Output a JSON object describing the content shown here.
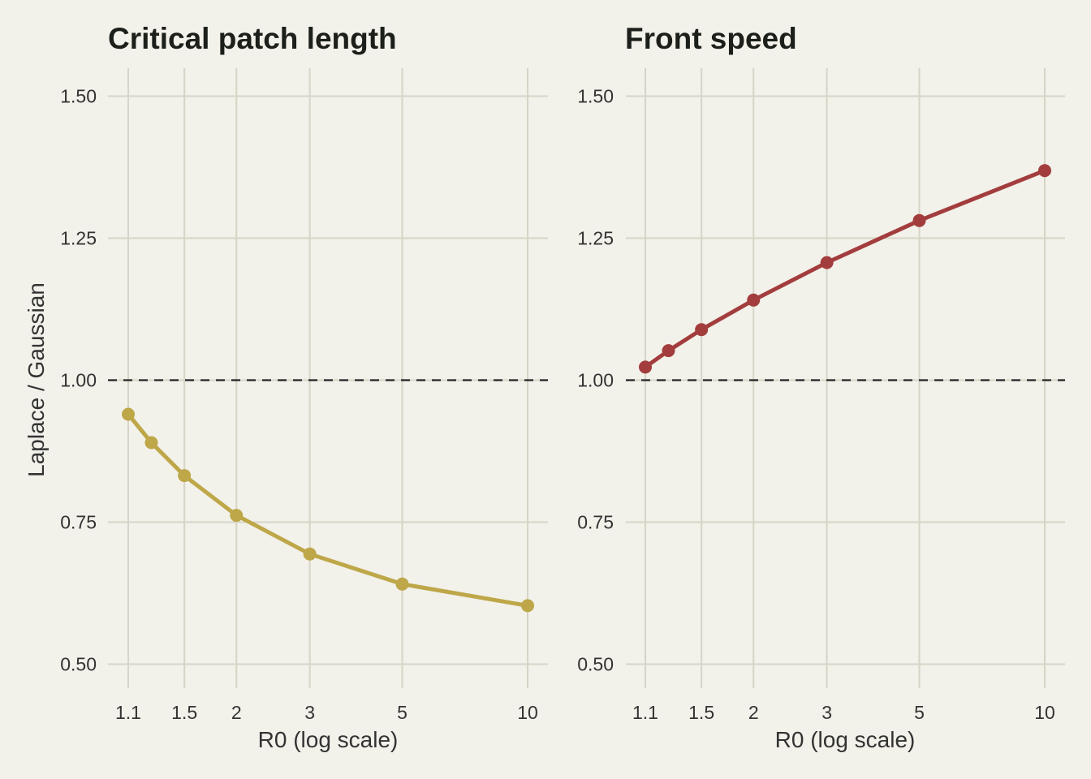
{
  "chart_data": [
    {
      "type": "line",
      "title": "Critical patch length",
      "xlabel": "R0 (log scale)",
      "ylabel": "Laplace / Gaussian",
      "x_scale": "log",
      "x_ticks": [
        1.1,
        1.5,
        2,
        3,
        5,
        10
      ],
      "x_tick_labels": [
        "1.1",
        "1.5",
        "2",
        "3",
        "5",
        "10"
      ],
      "xlim": [
        1.1,
        10
      ],
      "ylim": [
        0.5,
        1.5
      ],
      "y_ticks": [
        0.5,
        0.75,
        1.0,
        1.25,
        1.5
      ],
      "y_tick_labels": [
        "0.50",
        "0.75",
        "1.00",
        "1.25",
        "1.50"
      ],
      "reference_line": {
        "y": 1.0,
        "style": "dashed",
        "color": "#222222"
      },
      "grid": true,
      "series": [
        {
          "color": "#bea748",
          "x": [
            1.1,
            1.25,
            1.5,
            2,
            3,
            5,
            10
          ],
          "y": [
            0.94,
            0.89,
            0.832,
            0.762,
            0.694,
            0.641,
            0.603
          ]
        }
      ]
    },
    {
      "type": "line",
      "title": "Front speed",
      "xlabel": "R0 (log scale)",
      "ylabel": "",
      "x_scale": "log",
      "x_ticks": [
        1.1,
        1.5,
        2,
        3,
        5,
        10
      ],
      "x_tick_labels": [
        "1.1",
        "1.5",
        "2",
        "3",
        "5",
        "10"
      ],
      "xlim": [
        1.1,
        10
      ],
      "ylim": [
        0.5,
        1.5
      ],
      "y_ticks": [
        0.5,
        0.75,
        1.0,
        1.25,
        1.5
      ],
      "y_tick_labels": [
        "0.50",
        "0.75",
        "1.00",
        "1.25",
        "1.50"
      ],
      "reference_line": {
        "y": 1.0,
        "style": "dashed",
        "color": "#222222"
      },
      "grid": true,
      "series": [
        {
          "color": "#a33d3d",
          "x": [
            1.1,
            1.25,
            1.5,
            2,
            3,
            5,
            10
          ],
          "y": [
            1.023,
            1.052,
            1.089,
            1.141,
            1.207,
            1.281,
            1.369
          ]
        }
      ]
    }
  ]
}
